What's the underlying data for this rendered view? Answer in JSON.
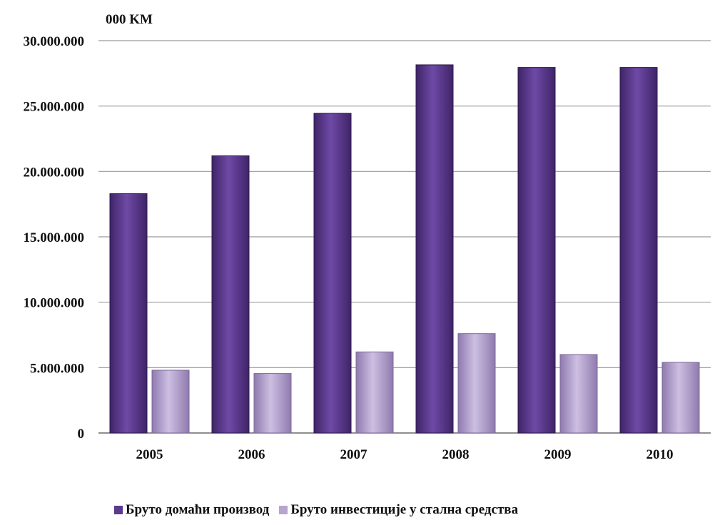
{
  "chart_data": {
    "type": "bar",
    "unit_label": "000 KM",
    "categories": [
      "2005",
      "2006",
      "2007",
      "2008",
      "2009",
      "2010"
    ],
    "series": [
      {
        "name": "Бруто домаћи производ",
        "color": "#5b3a8e",
        "values": [
          18300000,
          21200000,
          24450000,
          28150000,
          27950000,
          27950000
        ]
      },
      {
        "name": "Бруто инвестиције у стална средства",
        "color": "#b7a5cf",
        "values": [
          4800000,
          4550000,
          6200000,
          7600000,
          6000000,
          5400000
        ]
      }
    ],
    "ylim": [
      0,
      30000000
    ],
    "yticks": [
      {
        "value": 0,
        "label": "0"
      },
      {
        "value": 5000000,
        "label": "5.000.000"
      },
      {
        "value": 10000000,
        "label": "10.000.000"
      },
      {
        "value": 15000000,
        "label": "15.000.000"
      },
      {
        "value": 20000000,
        "label": "20.000.000"
      },
      {
        "value": 25000000,
        "label": "25.000.000"
      },
      {
        "value": 30000000,
        "label": "30.000.000"
      }
    ],
    "grid": true,
    "legend_position": "bottom"
  }
}
